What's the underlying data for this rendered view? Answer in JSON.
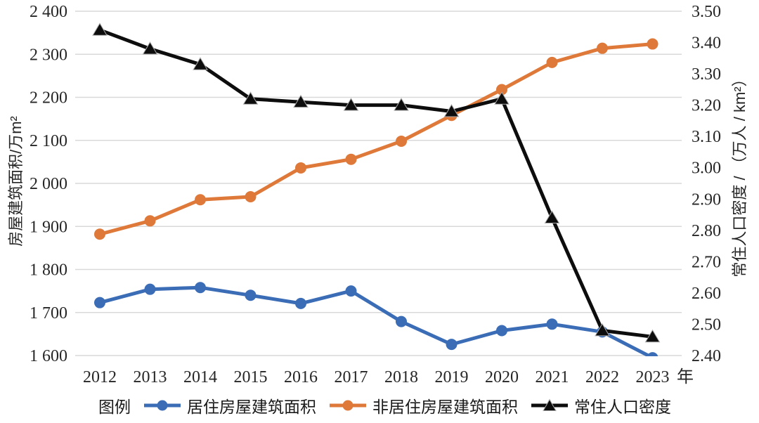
{
  "figure": {
    "legend_title": "图例",
    "x_axis_unit": "年"
  },
  "colors": {
    "residential_blue": "#3B6CB6",
    "non_residential_orange": "#DE7939",
    "density_black": "#0D0D0D",
    "gridline_gray": "#D9D9D9",
    "text_dark": "#262626"
  },
  "chart_data": {
    "type": "line",
    "title": "",
    "categories": [
      "2012",
      "2013",
      "2014",
      "2015",
      "2016",
      "2017",
      "2018",
      "2019",
      "2020",
      "2021",
      "2022",
      "2023"
    ],
    "grid": true,
    "legend_position": "bottom",
    "left_axis": {
      "title": "房屋建筑面积/万m²",
      "min": 1600,
      "max": 2400,
      "step": 100,
      "tick_labels": [
        "1 600",
        "1 700",
        "1 800",
        "1 900",
        "2 000",
        "2 100",
        "2 200",
        "2 300",
        "2 400"
      ]
    },
    "right_axis": {
      "title": "常住人口密度 / （万人 / km²）",
      "min": 2.4,
      "max": 3.5,
      "step": 0.1,
      "tick_labels": [
        "2.40",
        "2.50",
        "2.60",
        "2.70",
        "2.80",
        "2.90",
        "3.00",
        "3.10",
        "3.20",
        "3.30",
        "3.40",
        "3.50"
      ]
    },
    "series": [
      {
        "key": "residential",
        "name": "居住房屋建筑面积",
        "axis": "left",
        "marker": "circle",
        "color": "#3B6CB6",
        "values": [
          1723,
          1754,
          1758,
          1740,
          1721,
          1750,
          1679,
          1626,
          1658,
          1673,
          1655,
          1595
        ]
      },
      {
        "key": "non-residential",
        "name": "非居住房屋建筑面积",
        "axis": "left",
        "marker": "circle",
        "color": "#DE7939",
        "values": [
          1882,
          1913,
          1962,
          1969,
          2036,
          2056,
          2098,
          2158,
          2218,
          2281,
          2314,
          2324
        ]
      },
      {
        "key": "density",
        "name": "常住人口密度",
        "axis": "right",
        "marker": "triangle",
        "color": "#0D0D0D",
        "values": [
          3.44,
          3.38,
          3.33,
          3.22,
          3.21,
          3.2,
          3.2,
          3.18,
          3.22,
          2.84,
          2.48,
          2.46
        ]
      }
    ]
  }
}
